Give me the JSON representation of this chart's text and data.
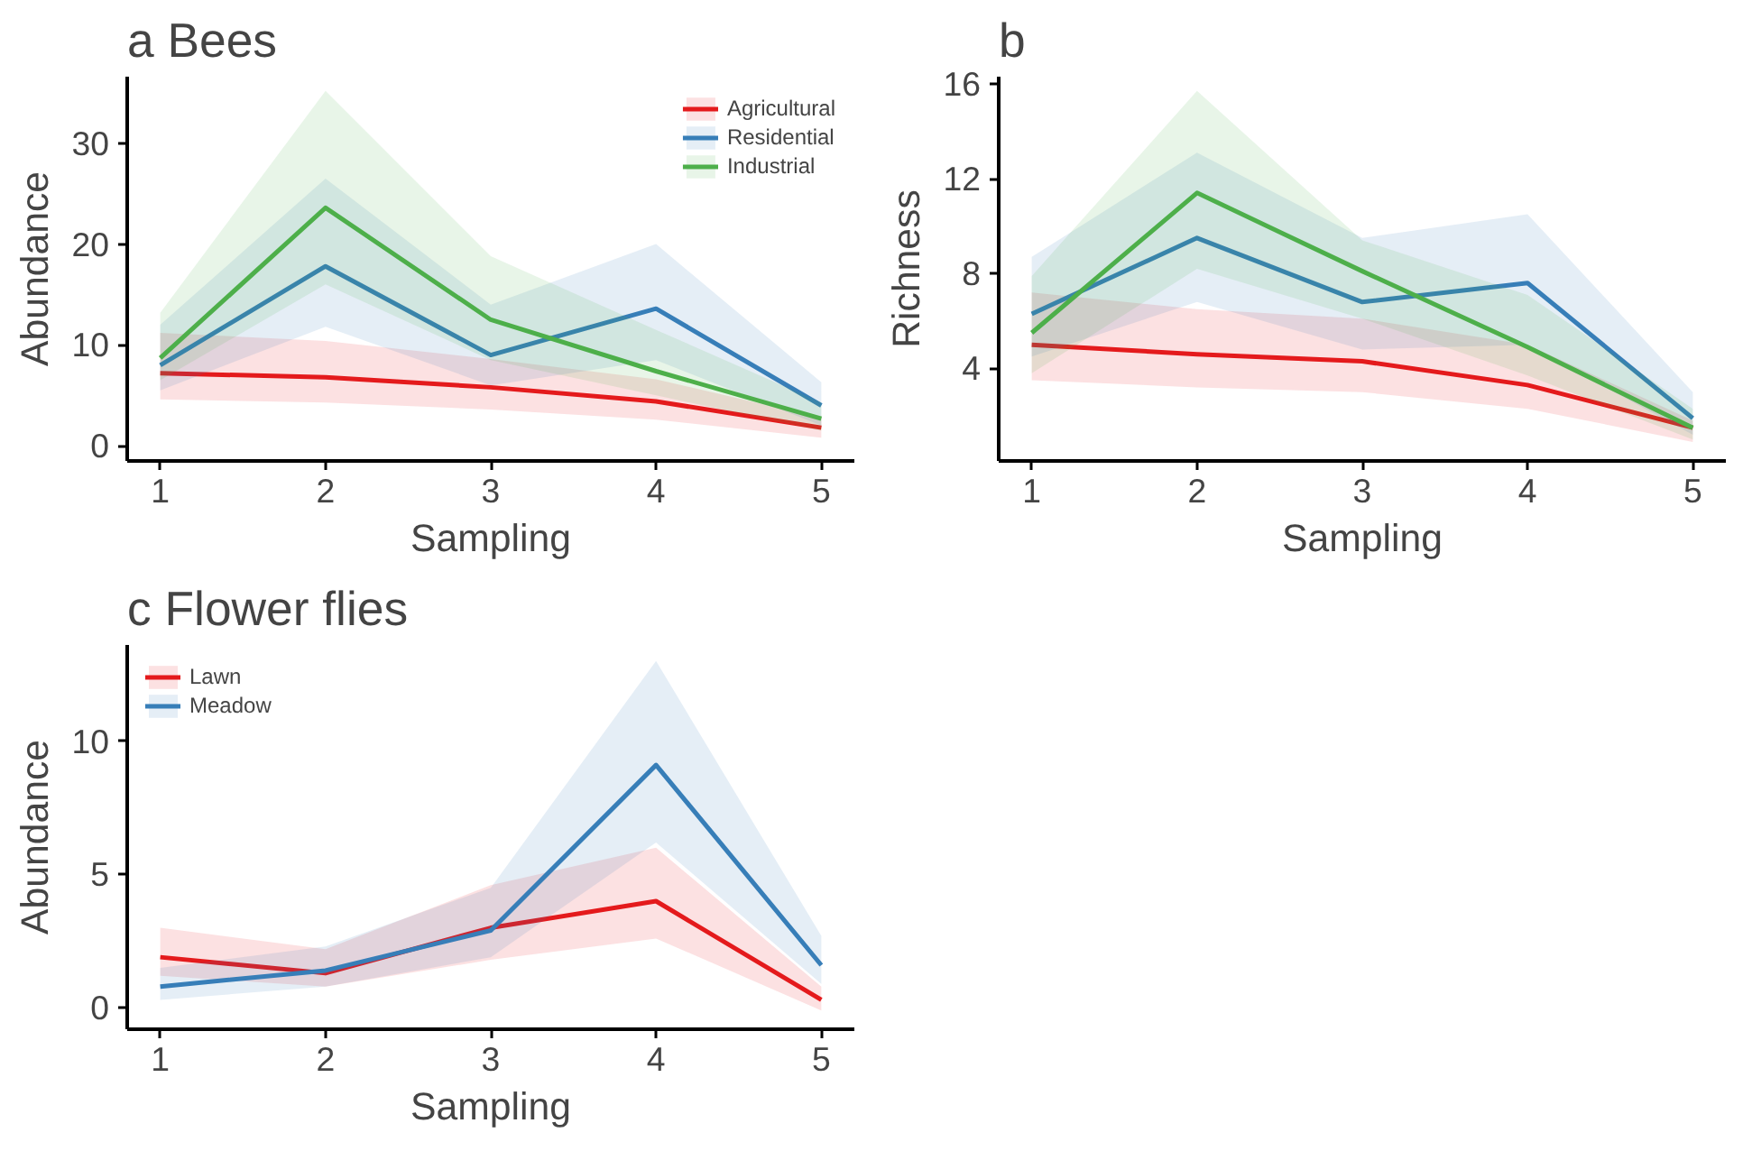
{
  "chart_data": [
    {
      "type": "line",
      "title": "a  Bees",
      "xlabel": "Sampling",
      "ylabel": "Abundance",
      "x": [
        1,
        2,
        3,
        4,
        5
      ],
      "xlim": [
        0.8,
        5.2
      ],
      "xticks": [
        1,
        2,
        3,
        4,
        5
      ],
      "ylim": [
        -1.5,
        36.6
      ],
      "yticks": [
        0,
        10,
        20,
        30
      ],
      "grid": false,
      "legend": "top right",
      "line_style": "solid",
      "marker": "none",
      "series": [
        {
          "name": "Agricultural",
          "color": "#e41a1c",
          "values": [
            7.2,
            6.8,
            5.8,
            4.4,
            1.8
          ],
          "lower": [
            4.6,
            4.3,
            3.6,
            2.6,
            0.8
          ],
          "upper": [
            11.2,
            10.4,
            8.6,
            6.6,
            2.8
          ]
        },
        {
          "name": "Residential",
          "color": "#377eb8",
          "values": [
            8.0,
            17.8,
            9.0,
            13.6,
            4.0
          ],
          "lower": [
            5.5,
            11.8,
            6.0,
            8.5,
            2.0
          ],
          "upper": [
            12.0,
            26.5,
            14.0,
            20.0,
            6.3
          ]
        },
        {
          "name": "Industrial",
          "color": "#4daf4a",
          "values": [
            8.7,
            23.6,
            12.5,
            7.4,
            2.7
          ],
          "lower": [
            6.5,
            16.0,
            8.5,
            5.0,
            1.5
          ],
          "upper": [
            13.2,
            35.2,
            18.8,
            11.5,
            4.3
          ]
        }
      ]
    },
    {
      "type": "line",
      "title": "b",
      "xlabel": "Sampling",
      "ylabel": "Richness",
      "x": [
        1,
        2,
        3,
        4,
        5
      ],
      "xlim": [
        0.8,
        5.2
      ],
      "xticks": [
        1,
        2,
        3,
        4,
        5
      ],
      "ylim": [
        0.1,
        16.3
      ],
      "yticks": [
        4,
        8,
        12,
        16
      ],
      "grid": false,
      "legend": false,
      "line_style": "solid",
      "marker": "none",
      "series": [
        {
          "color": "#e41a1c",
          "values": [
            5.0,
            4.6,
            4.3,
            3.3,
            1.5
          ],
          "lower": [
            3.5,
            3.2,
            3.0,
            2.3,
            0.9
          ],
          "upper": [
            7.2,
            6.5,
            6.1,
            5.0,
            1.8
          ]
        },
        {
          "color": "#377eb8",
          "values": [
            6.3,
            9.5,
            6.8,
            7.6,
            1.9
          ],
          "lower": [
            4.5,
            6.8,
            4.8,
            5.0,
            1.2
          ],
          "upper": [
            8.7,
            13.1,
            9.5,
            10.5,
            3.0
          ]
        },
        {
          "color": "#4daf4a",
          "values": [
            5.5,
            11.4,
            8.1,
            4.9,
            1.5
          ],
          "lower": [
            3.8,
            8.2,
            6.1,
            3.7,
            1.0
          ],
          "upper": [
            7.9,
            15.7,
            9.4,
            7.1,
            2.3
          ]
        }
      ]
    },
    {
      "type": "line",
      "title": "c Flower flies",
      "xlabel": "Sampling",
      "ylabel": "Abundance",
      "x": [
        1,
        2,
        3,
        4,
        5
      ],
      "xlim": [
        0.8,
        5.2
      ],
      "xticks": [
        1,
        2,
        3,
        4,
        5
      ],
      "ylim": [
        -0.8,
        13.6
      ],
      "yticks": [
        0,
        5,
        10
      ],
      "grid": false,
      "legend": "top left",
      "line_style": "solid",
      "marker": "none",
      "series": [
        {
          "name": "Lawn",
          "color": "#e41a1c",
          "values": [
            1.9,
            1.3,
            3.0,
            4.0,
            0.3
          ],
          "lower": [
            1.2,
            0.8,
            1.8,
            2.6,
            -0.1
          ],
          "upper": [
            3.0,
            2.2,
            4.6,
            6.0,
            0.8
          ]
        },
        {
          "name": "Meadow",
          "color": "#377eb8",
          "values": [
            0.8,
            1.4,
            2.9,
            9.1,
            1.6
          ],
          "lower": [
            0.3,
            0.8,
            1.9,
            6.2,
            0.9
          ],
          "upper": [
            1.5,
            2.3,
            4.5,
            13.0,
            2.7
          ]
        }
      ]
    }
  ]
}
